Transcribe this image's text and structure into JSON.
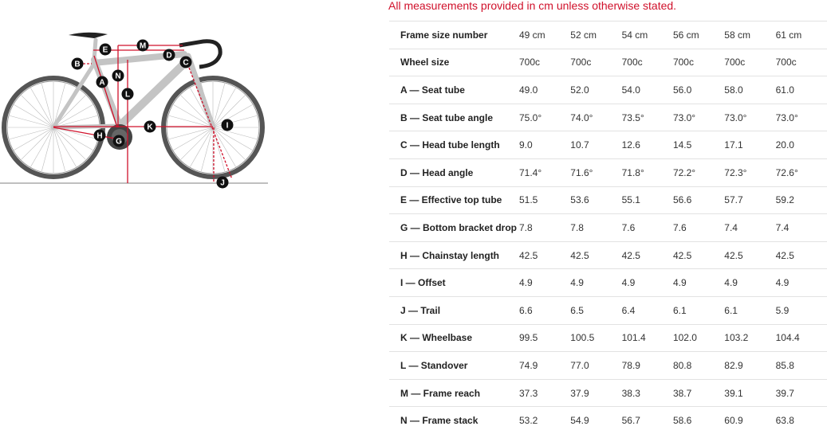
{
  "notice": "All measurements provided in cm unless otherwise stated.",
  "diagram": {
    "labels": [
      "A",
      "B",
      "C",
      "D",
      "E",
      "G",
      "H",
      "I",
      "J",
      "K",
      "L",
      "M",
      "N"
    ],
    "accent": "#d0112b"
  },
  "geometry": {
    "header": {
      "label": "Frame size number",
      "sizes": [
        "49 cm",
        "52 cm",
        "54 cm",
        "56 cm",
        "58 cm",
        "61 cm"
      ]
    },
    "rows": [
      {
        "label": "Wheel size",
        "values": [
          "700c",
          "700c",
          "700c",
          "700c",
          "700c",
          "700c"
        ]
      },
      {
        "label": "A — Seat tube",
        "values": [
          "49.0",
          "52.0",
          "54.0",
          "56.0",
          "58.0",
          "61.0"
        ]
      },
      {
        "label": "B — Seat tube angle",
        "values": [
          "75.0°",
          "74.0°",
          "73.5°",
          "73.0°",
          "73.0°",
          "73.0°"
        ]
      },
      {
        "label": "C — Head tube length",
        "values": [
          "9.0",
          "10.7",
          "12.6",
          "14.5",
          "17.1",
          "20.0"
        ]
      },
      {
        "label": "D — Head angle",
        "values": [
          "71.4°",
          "71.6°",
          "71.8°",
          "72.2°",
          "72.3°",
          "72.6°"
        ]
      },
      {
        "label": "E — Effective top tube",
        "values": [
          "51.5",
          "53.6",
          "55.1",
          "56.6",
          "57.7",
          "59.2"
        ]
      },
      {
        "label": "G — Bottom bracket drop",
        "values": [
          "7.8",
          "7.8",
          "7.6",
          "7.6",
          "7.4",
          "7.4"
        ]
      },
      {
        "label": "H — Chainstay length",
        "values": [
          "42.5",
          "42.5",
          "42.5",
          "42.5",
          "42.5",
          "42.5"
        ]
      },
      {
        "label": "I — Offset",
        "values": [
          "4.9",
          "4.9",
          "4.9",
          "4.9",
          "4.9",
          "4.9"
        ]
      },
      {
        "label": "J — Trail",
        "values": [
          "6.6",
          "6.5",
          "6.4",
          "6.1",
          "6.1",
          "5.9"
        ]
      },
      {
        "label": "K — Wheelbase",
        "values": [
          "99.5",
          "100.5",
          "101.4",
          "102.0",
          "103.2",
          "104.4"
        ]
      },
      {
        "label": "L — Standover",
        "values": [
          "74.9",
          "77.0",
          "78.9",
          "80.8",
          "82.9",
          "85.8"
        ]
      },
      {
        "label": "M — Frame reach",
        "values": [
          "37.3",
          "37.9",
          "38.3",
          "38.7",
          "39.1",
          "39.7"
        ]
      },
      {
        "label": "N — Frame stack",
        "values": [
          "53.2",
          "54.9",
          "56.7",
          "58.6",
          "60.9",
          "63.8"
        ]
      }
    ]
  }
}
